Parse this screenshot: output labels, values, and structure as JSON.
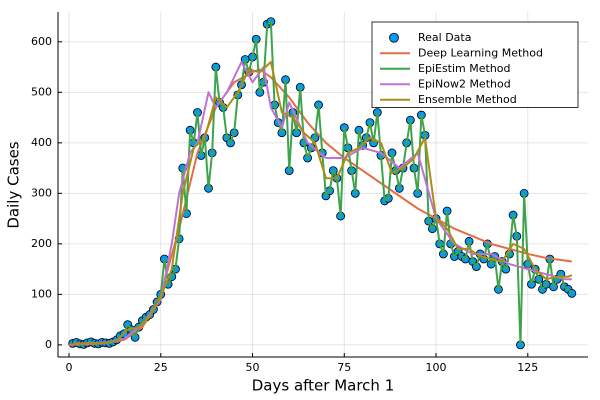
{
  "chart_data": {
    "type": "line",
    "xlabel": "Days after March 1",
    "ylabel": "Daily Cases",
    "xlim": [
      -3,
      141.4
    ],
    "ylim": [
      -24,
      659
    ],
    "xticks": [
      0,
      25,
      50,
      75,
      100,
      125
    ],
    "yticks": [
      0,
      100,
      200,
      300,
      400,
      500,
      600
    ],
    "grid": true,
    "legend": "top-right",
    "x": [
      1,
      2,
      3,
      4,
      5,
      6,
      7,
      8,
      9,
      10,
      11,
      12,
      13,
      14,
      15,
      16,
      17,
      18,
      19,
      20,
      21,
      22,
      23,
      24,
      25,
      26,
      27,
      28,
      29,
      30,
      31,
      32,
      33,
      34,
      35,
      36,
      37,
      38,
      39,
      40,
      41,
      42,
      43,
      44,
      45,
      46,
      47,
      48,
      49,
      50,
      51,
      52,
      53,
      54,
      55,
      56,
      57,
      58,
      59,
      60,
      61,
      62,
      63,
      64,
      65,
      66,
      67,
      68,
      69,
      70,
      71,
      72,
      73,
      74,
      75,
      76,
      77,
      78,
      79,
      80,
      81,
      82,
      83,
      84,
      85,
      86,
      87,
      88,
      89,
      90,
      91,
      92,
      93,
      94,
      95,
      96,
      97,
      98,
      99,
      100,
      101,
      102,
      103,
      104,
      105,
      106,
      107,
      108,
      109,
      110,
      111,
      112,
      113,
      114,
      115,
      116,
      117,
      118,
      119,
      120,
      121,
      122,
      123,
      124,
      125,
      126,
      127,
      128,
      129,
      130,
      131,
      132,
      133,
      134,
      135,
      136,
      137
    ],
    "series": [
      {
        "name": "Real Data",
        "type": "scatter",
        "color": "#009AFA",
        "values": [
          3,
          5,
          2,
          1,
          4,
          6,
          3,
          2,
          5,
          4,
          3,
          6,
          10,
          18,
          22,
          40,
          30,
          15,
          35,
          48,
          55,
          60,
          70,
          85,
          100,
          170,
          120,
          135,
          150,
          210,
          350,
          260,
          425,
          400,
          460,
          375,
          410,
          310,
          380,
          550,
          480,
          470,
          410,
          400,
          420,
          495,
          515,
          565,
          540,
          570,
          605,
          500,
          520,
          635,
          640,
          475,
          440,
          420,
          525,
          345,
          460,
          420,
          510,
          400,
          370,
          390,
          410,
          475,
          380,
          295,
          305,
          345,
          330,
          255,
          430,
          390,
          345,
          300,
          425,
          395,
          410,
          440,
          400,
          460,
          375,
          285,
          290,
          380,
          345,
          310,
          350,
          400,
          445,
          350,
          300,
          455,
          415,
          245,
          230,
          250,
          200,
          180,
          265,
          200,
          175,
          185,
          175,
          170,
          205,
          165,
          155,
          180,
          170,
          200,
          160,
          175,
          110,
          165,
          150,
          180,
          257,
          215,
          0,
          300,
          160,
          120,
          150,
          130,
          110,
          120,
          170,
          115,
          130,
          140,
          115,
          110,
          102
        ]
      },
      {
        "name": "Deep Learning Method",
        "type": "line",
        "color": "#E26F46",
        "x": [
          0,
          5,
          10,
          15,
          20,
          25,
          30,
          35,
          40,
          45,
          50,
          52,
          55,
          60,
          65,
          70,
          75,
          80,
          85,
          90,
          95,
          100,
          105,
          110,
          115,
          120,
          125,
          130,
          135,
          137
        ],
        "values": [
          0,
          1,
          3,
          10,
          35,
          100,
          230,
          380,
          470,
          520,
          540,
          545,
          530,
          490,
          440,
          400,
          370,
          345,
          320,
          295,
          270,
          250,
          230,
          215,
          200,
          190,
          180,
          172,
          167,
          165
        ]
      },
      {
        "name": "EpiEstim Method",
        "type": "line",
        "color": "#3DA44D",
        "values": [
          3,
          5,
          2,
          1,
          4,
          6,
          3,
          2,
          5,
          4,
          3,
          6,
          10,
          18,
          22,
          40,
          30,
          15,
          35,
          48,
          55,
          60,
          70,
          85,
          100,
          170,
          120,
          135,
          150,
          210,
          350,
          260,
          425,
          400,
          460,
          375,
          410,
          310,
          380,
          550,
          480,
          470,
          410,
          400,
          420,
          495,
          515,
          565,
          540,
          570,
          605,
          500,
          520,
          635,
          640,
          475,
          440,
          420,
          525,
          345,
          460,
          420,
          510,
          400,
          370,
          390,
          410,
          475,
          380,
          295,
          305,
          345,
          330,
          255,
          430,
          390,
          345,
          300,
          425,
          395,
          410,
          440,
          400,
          460,
          375,
          285,
          290,
          380,
          345,
          310,
          350,
          400,
          445,
          350,
          300,
          455,
          415,
          245,
          230,
          250,
          200,
          180,
          265,
          200,
          175,
          185,
          175,
          170,
          205,
          165,
          155,
          180,
          170,
          200,
          160,
          175,
          110,
          165,
          150,
          180,
          257,
          215,
          0,
          300,
          160,
          120,
          150,
          130,
          110,
          120,
          170,
          115,
          130,
          140,
          115,
          110,
          102
        ]
      },
      {
        "name": "EpiNow2 Method",
        "type": "line",
        "color": "#C271D2",
        "x": [
          1,
          5,
          10,
          15,
          20,
          25,
          28,
          30,
          33,
          35,
          38,
          40,
          43,
          45,
          47,
          50,
          53,
          55,
          58,
          60,
          65,
          70,
          75,
          80,
          85,
          90,
          95,
          100,
          105,
          110,
          115,
          120,
          125,
          130,
          135,
          137
        ],
        "values": [
          2,
          3,
          5,
          12,
          40,
          90,
          200,
          300,
          380,
          400,
          500,
          470,
          500,
          530,
          560,
          520,
          550,
          470,
          430,
          480,
          400,
          370,
          370,
          390,
          380,
          350,
          380,
          250,
          200,
          180,
          180,
          160,
          150,
          140,
          130,
          130
        ]
      },
      {
        "name": "Ensemble Method",
        "type": "line",
        "color": "#AC8D18",
        "x": [
          1,
          4,
          7,
          10,
          13,
          16,
          19,
          22,
          25,
          28,
          31,
          34,
          37,
          40,
          43,
          46,
          49,
          52,
          55,
          58,
          61,
          64,
          67,
          70,
          73,
          76,
          79,
          82,
          85,
          88,
          91,
          94,
          97,
          100,
          103,
          106,
          109,
          112,
          115,
          118,
          121,
          124,
          127,
          130,
          133,
          136,
          137
        ],
        "values": [
          3,
          3,
          3,
          4,
          8,
          30,
          35,
          55,
          95,
          150,
          300,
          390,
          410,
          490,
          470,
          500,
          545,
          540,
          560,
          460,
          450,
          420,
          400,
          330,
          330,
          380,
          390,
          410,
          400,
          340,
          350,
          370,
          410,
          250,
          230,
          190,
          190,
          175,
          170,
          165,
          200,
          190,
          150,
          130,
          135,
          135,
          138
        ]
      }
    ]
  }
}
